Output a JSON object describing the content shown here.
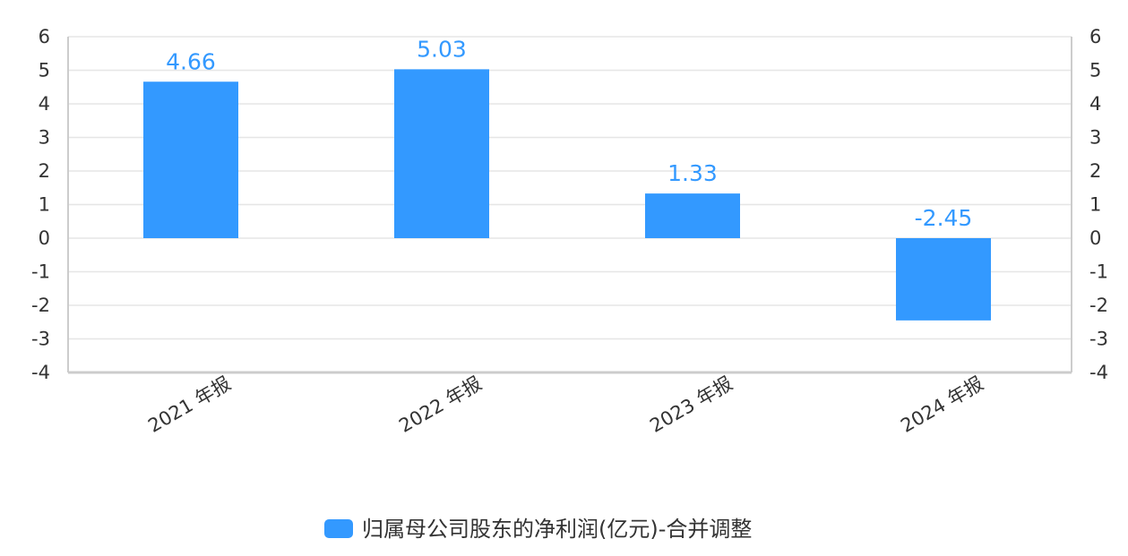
{
  "chart_data": {
    "type": "bar",
    "categories": [
      "2021 年报",
      "2022 年报",
      "2023 年报",
      "2024 年报"
    ],
    "series": [
      {
        "name": "归属母公司股东的净利润(亿元)-合并调整",
        "values": [
          4.66,
          5.03,
          1.33,
          -2.45
        ],
        "data_labels": [
          "4.66",
          "5.03",
          "1.33",
          "-2.45"
        ],
        "color": "#3399ff"
      }
    ],
    "ylim": [
      -4,
      6
    ],
    "yticks": [
      6,
      5,
      4,
      3,
      2,
      1,
      0,
      -1,
      -2,
      -3,
      -4
    ],
    "grid": true,
    "secondary_y_axis": true,
    "legend_position": "bottom-center",
    "colors": {
      "bar": "#3399ff",
      "label": "#3399ff",
      "grid": "#e6e6e6",
      "axis": "#cccccc",
      "text": "#333333"
    }
  }
}
